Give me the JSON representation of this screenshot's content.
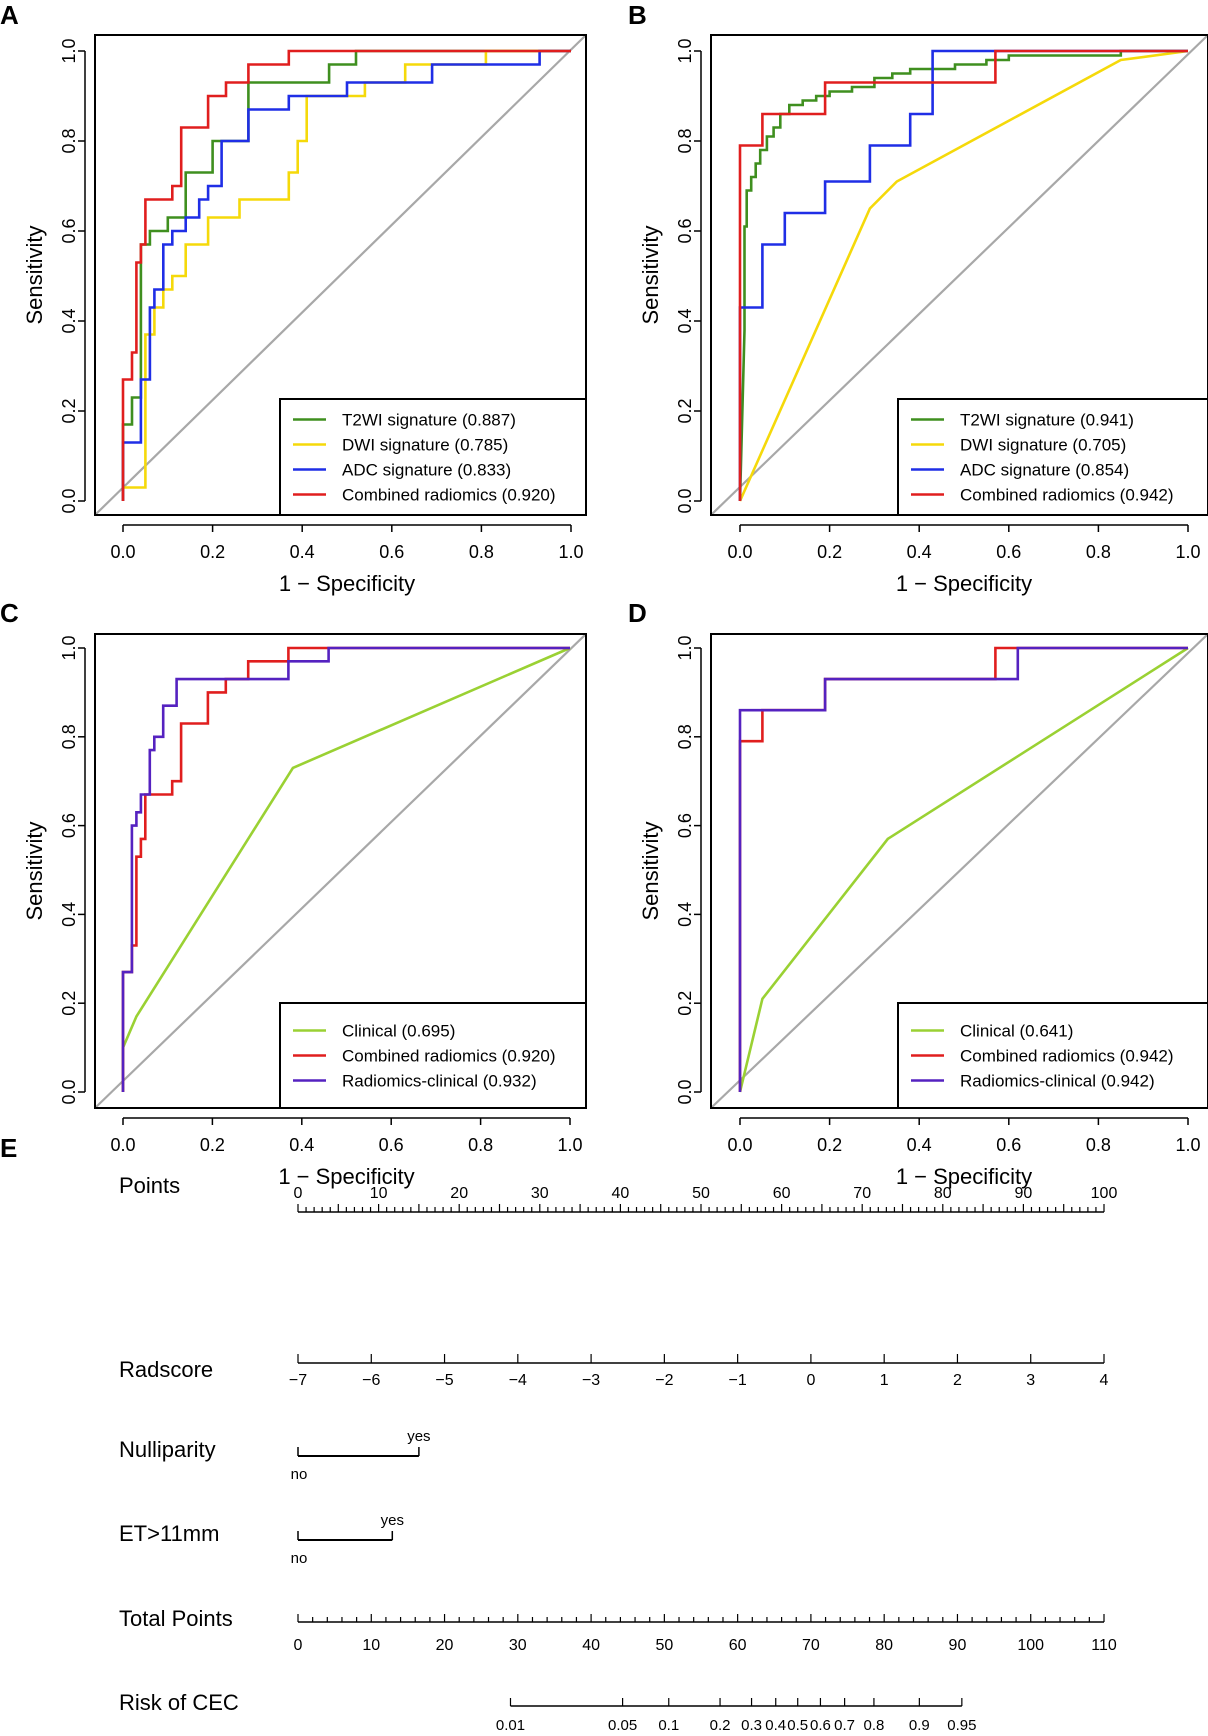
{
  "chart_data": [
    {
      "panel": "A",
      "type": "line",
      "xlabel": "1 − Specificity",
      "ylabel": "Sensitivity",
      "xlim": [
        0,
        1
      ],
      "ylim": [
        0,
        1
      ],
      "xticks": [
        "0.0",
        "0.2",
        "0.4",
        "0.6",
        "0.8",
        "1.0"
      ],
      "yticks": [
        "0.0",
        "0.2",
        "0.4",
        "0.6",
        "0.8",
        "1.0"
      ],
      "legend_position": "bottom-right",
      "series": [
        {
          "name": "T2WI signature (0.887)",
          "color": "#3f8f1f",
          "x": [
            0,
            0,
            0.02,
            0.02,
            0.04,
            0.04,
            0.06,
            0.06,
            0.1,
            0.1,
            0.14,
            0.14,
            0.2,
            0.2,
            0.28,
            0.28,
            0.46,
            0.46,
            0.52,
            0.52,
            1
          ],
          "y": [
            0,
            0.17,
            0.17,
            0.23,
            0.23,
            0.57,
            0.57,
            0.6,
            0.6,
            0.63,
            0.63,
            0.73,
            0.73,
            0.8,
            0.8,
            0.93,
            0.93,
            0.97,
            0.97,
            1,
            1
          ]
        },
        {
          "name": "DWI signature (0.785)",
          "color": "#f5d90a",
          "x": [
            0,
            0,
            0.05,
            0.05,
            0.07,
            0.07,
            0.09,
            0.09,
            0.11,
            0.11,
            0.14,
            0.14,
            0.19,
            0.19,
            0.26,
            0.26,
            0.37,
            0.37,
            0.39,
            0.39,
            0.41,
            0.41,
            0.54,
            0.54,
            0.63,
            0.63,
            0.81,
            0.81,
            1
          ],
          "y": [
            0,
            0.03,
            0.03,
            0.37,
            0.37,
            0.43,
            0.43,
            0.47,
            0.47,
            0.5,
            0.5,
            0.57,
            0.57,
            0.63,
            0.63,
            0.67,
            0.67,
            0.73,
            0.73,
            0.8,
            0.8,
            0.9,
            0.9,
            0.93,
            0.93,
            0.97,
            0.97,
            1,
            1
          ]
        },
        {
          "name": "ADC signature (0.833)",
          "color": "#1f2ee6",
          "x": [
            0,
            0,
            0.04,
            0.04,
            0.06,
            0.06,
            0.07,
            0.07,
            0.09,
            0.09,
            0.11,
            0.11,
            0.14,
            0.14,
            0.17,
            0.17,
            0.19,
            0.19,
            0.22,
            0.22,
            0.28,
            0.28,
            0.37,
            0.37,
            0.5,
            0.5,
            0.69,
            0.69,
            0.93,
            0.93,
            1
          ],
          "y": [
            0,
            0.13,
            0.13,
            0.27,
            0.27,
            0.43,
            0.43,
            0.47,
            0.47,
            0.57,
            0.57,
            0.6,
            0.6,
            0.63,
            0.63,
            0.67,
            0.67,
            0.7,
            0.7,
            0.8,
            0.8,
            0.87,
            0.87,
            0.9,
            0.9,
            0.93,
            0.93,
            0.97,
            0.97,
            1,
            1
          ]
        },
        {
          "name": "Combined radiomics (0.920)",
          "color": "#e01e1e",
          "x": [
            0,
            0,
            0.02,
            0.02,
            0.03,
            0.03,
            0.04,
            0.04,
            0.05,
            0.05,
            0.11,
            0.11,
            0.13,
            0.13,
            0.19,
            0.19,
            0.23,
            0.23,
            0.28,
            0.28,
            0.37,
            0.37,
            1
          ],
          "y": [
            0,
            0.27,
            0.27,
            0.33,
            0.33,
            0.53,
            0.53,
            0.57,
            0.57,
            0.67,
            0.67,
            0.7,
            0.7,
            0.83,
            0.83,
            0.9,
            0.9,
            0.93,
            0.93,
            0.97,
            0.97,
            1,
            1
          ]
        }
      ]
    },
    {
      "panel": "B",
      "type": "line",
      "xlabel": "1 − Specificity",
      "ylabel": "Sensitivity",
      "xlim": [
        0,
        1
      ],
      "ylim": [
        0,
        1
      ],
      "xticks": [
        "0.0",
        "0.2",
        "0.4",
        "0.6",
        "0.8",
        "1.0"
      ],
      "yticks": [
        "0.0",
        "0.2",
        "0.4",
        "0.6",
        "0.8",
        "1.0"
      ],
      "legend_position": "bottom-right",
      "series": [
        {
          "name": "T2WI signature (0.941)",
          "color": "#3f8f1f",
          "x": [
            0,
            0.01,
            0.01,
            0.015,
            0.015,
            0.025,
            0.025,
            0.035,
            0.035,
            0.045,
            0.045,
            0.06,
            0.06,
            0.075,
            0.075,
            0.09,
            0.09,
            0.11,
            0.11,
            0.14,
            0.14,
            0.17,
            0.17,
            0.2,
            0.2,
            0.25,
            0.25,
            0.3,
            0.3,
            0.34,
            0.34,
            0.38,
            0.38,
            0.48,
            0.48,
            0.55,
            0.55,
            0.6,
            0.6,
            0.85,
            0.85,
            1
          ],
          "y": [
            0,
            0.38,
            0.61,
            0.61,
            0.69,
            0.69,
            0.72,
            0.72,
            0.75,
            0.75,
            0.78,
            0.78,
            0.81,
            0.81,
            0.83,
            0.83,
            0.86,
            0.86,
            0.88,
            0.88,
            0.89,
            0.89,
            0.9,
            0.9,
            0.91,
            0.91,
            0.92,
            0.92,
            0.94,
            0.94,
            0.95,
            0.95,
            0.96,
            0.96,
            0.97,
            0.97,
            0.98,
            0.98,
            0.99,
            0.99,
            1,
            1
          ]
        },
        {
          "name": "DWI signature (0.705)",
          "color": "#f5d90a",
          "x": [
            0,
            0.29,
            0.35,
            0.85,
            1
          ],
          "y": [
            0,
            0.65,
            0.71,
            0.98,
            1
          ]
        },
        {
          "name": "ADC signature (0.854)",
          "color": "#1f2ee6",
          "x": [
            0,
            0,
            0.05,
            0.05,
            0.1,
            0.1,
            0.19,
            0.19,
            0.29,
            0.29,
            0.38,
            0.38,
            0.43,
            0.43,
            1
          ],
          "y": [
            0,
            0.43,
            0.43,
            0.57,
            0.57,
            0.64,
            0.64,
            0.71,
            0.71,
            0.79,
            0.79,
            0.86,
            0.86,
            1,
            1
          ]
        },
        {
          "name": "Combined radiomics (0.942)",
          "color": "#e01e1e",
          "x": [
            0,
            0,
            0.05,
            0.05,
            0.19,
            0.19,
            0.57,
            0.57,
            1
          ],
          "y": [
            0,
            0.79,
            0.79,
            0.86,
            0.86,
            0.93,
            0.93,
            1,
            1
          ]
        }
      ]
    },
    {
      "panel": "C",
      "type": "line",
      "xlabel": "1 − Specificity",
      "ylabel": "Sensitivity",
      "xlim": [
        0,
        1
      ],
      "ylim": [
        0,
        1
      ],
      "xticks": [
        "0.0",
        "0.2",
        "0.4",
        "0.6",
        "0.8",
        "1.0"
      ],
      "yticks": [
        "0.0",
        "0.2",
        "0.4",
        "0.6",
        "0.8",
        "1.0"
      ],
      "legend_position": "bottom-right",
      "series": [
        {
          "name": "Clinical (0.695)",
          "color": "#9ad133",
          "x": [
            0,
            0,
            0.03,
            0.38,
            1
          ],
          "y": [
            0,
            0.1,
            0.17,
            0.73,
            1
          ]
        },
        {
          "name": "Combined radiomics (0.920)",
          "color": "#e01e1e",
          "x": [
            0,
            0,
            0.02,
            0.02,
            0.03,
            0.03,
            0.04,
            0.04,
            0.05,
            0.05,
            0.11,
            0.11,
            0.13,
            0.13,
            0.19,
            0.19,
            0.23,
            0.23,
            0.28,
            0.28,
            0.37,
            0.37,
            1
          ],
          "y": [
            0,
            0.27,
            0.27,
            0.33,
            0.33,
            0.53,
            0.53,
            0.57,
            0.57,
            0.67,
            0.67,
            0.7,
            0.7,
            0.83,
            0.83,
            0.9,
            0.9,
            0.93,
            0.93,
            0.97,
            0.97,
            1,
            1
          ]
        },
        {
          "name": "Radiomics-clinical (0.932)",
          "color": "#5522c0",
          "x": [
            0,
            0,
            0.02,
            0.02,
            0.03,
            0.03,
            0.04,
            0.04,
            0.06,
            0.06,
            0.07,
            0.07,
            0.09,
            0.09,
            0.12,
            0.12,
            0.19,
            0.19,
            0.37,
            0.37,
            0.46,
            0.46,
            1
          ],
          "y": [
            0,
            0.27,
            0.27,
            0.6,
            0.6,
            0.63,
            0.63,
            0.67,
            0.67,
            0.77,
            0.77,
            0.8,
            0.8,
            0.87,
            0.87,
            0.93,
            0.93,
            0.93,
            0.93,
            0.97,
            0.97,
            1,
            1
          ]
        }
      ]
    },
    {
      "panel": "D",
      "type": "line",
      "xlabel": "1 − Specificity",
      "ylabel": "Sensitivity",
      "xlim": [
        0,
        1
      ],
      "ylim": [
        0,
        1
      ],
      "xticks": [
        "0.0",
        "0.2",
        "0.4",
        "0.6",
        "0.8",
        "1.0"
      ],
      "yticks": [
        "0.0",
        "0.2",
        "0.4",
        "0.6",
        "0.8",
        "1.0"
      ],
      "legend_position": "bottom-right",
      "series": [
        {
          "name": "Clinical (0.641)",
          "color": "#9ad133",
          "x": [
            0,
            0.05,
            0.33,
            1
          ],
          "y": [
            0,
            0.21,
            0.57,
            1
          ]
        },
        {
          "name": "Combined radiomics (0.942)",
          "color": "#e01e1e",
          "x": [
            0,
            0,
            0.05,
            0.05,
            0.19,
            0.19,
            0.57,
            0.57,
            1
          ],
          "y": [
            0,
            0.79,
            0.79,
            0.86,
            0.86,
            0.93,
            0.93,
            1,
            1
          ]
        },
        {
          "name": "Radiomics-clinical (0.942)",
          "color": "#5522c0",
          "x": [
            0,
            0,
            0.19,
            0.19,
            0.62,
            0.62,
            1
          ],
          "y": [
            0,
            0.86,
            0.86,
            0.93,
            0.93,
            1,
            1
          ]
        }
      ]
    },
    {
      "panel": "E",
      "type": "nomogram",
      "rows": [
        {
          "label": "Points",
          "kind": "axis",
          "min": 0,
          "max": 100,
          "tick_labels": [
            "0",
            "10",
            "20",
            "30",
            "40",
            "50",
            "60",
            "70",
            "80",
            "90",
            "100"
          ],
          "label_values": [
            0,
            10,
            20,
            30,
            40,
            50,
            60,
            70,
            80,
            90,
            100
          ],
          "minor_step": 1,
          "major_step": 5,
          "labels_above": true
        },
        {
          "label": "Radscore",
          "kind": "axis",
          "points_range": [
            0,
            100
          ],
          "tick_labels": [
            "−7",
            "−6",
            "−5",
            "−4",
            "−3",
            "−2",
            "−1",
            "0",
            "1",
            "2",
            "3",
            "4"
          ],
          "labels_above": false
        },
        {
          "label": "Nulliparity",
          "kind": "binary",
          "low_label": "no",
          "high_label": "yes",
          "high_points": 15
        },
        {
          "label": "ET>11mm",
          "kind": "binary",
          "low_label": "no",
          "high_label": "yes",
          "high_points": 11.7
        },
        {
          "label": "Total Points",
          "kind": "axis",
          "min": 0,
          "max": 110,
          "tick_labels": [
            "0",
            "10",
            "20",
            "30",
            "40",
            "50",
            "60",
            "70",
            "80",
            "90",
            "100",
            "110"
          ],
          "label_values": [
            0,
            10,
            20,
            30,
            40,
            50,
            60,
            70,
            80,
            90,
            100,
            110
          ],
          "minor_step": 2,
          "major_step": 10,
          "labels_above": false
        },
        {
          "label": "Risk of CEC",
          "kind": "risk",
          "tick_labels": [
            "0.01",
            "0.05",
            "0.1",
            "0.2",
            "0.3",
            "0.4",
            "0.5",
            "0.6",
            "0.7",
            "0.8",
            "0.9",
            "0.95"
          ],
          "tick_total_points": [
            29,
            44.3,
            50.6,
            57.6,
            61.9,
            65.2,
            68.2,
            71.3,
            74.6,
            78.6,
            84.8,
            90.6
          ]
        }
      ]
    }
  ]
}
